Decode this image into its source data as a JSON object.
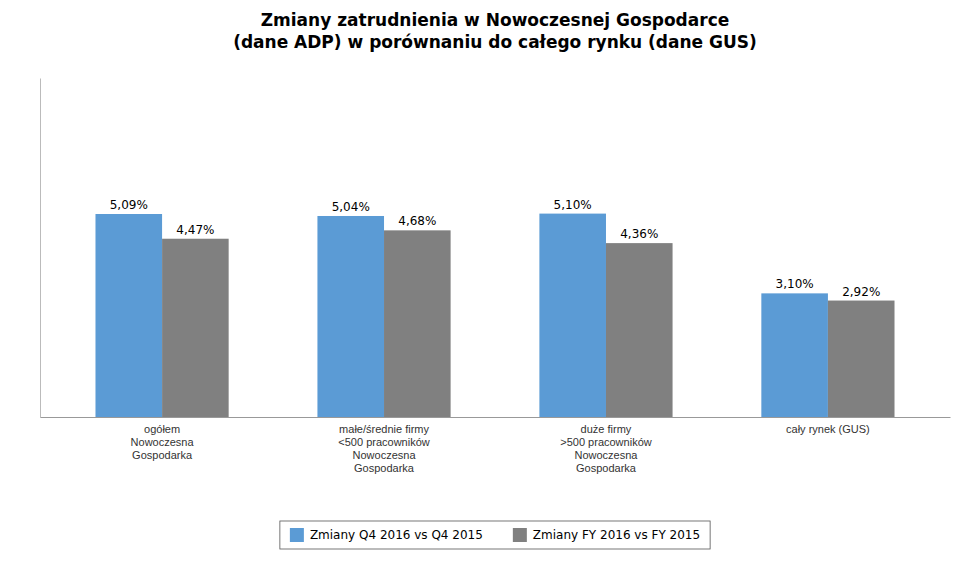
{
  "chart_data": {
    "type": "bar",
    "title": "Zmiany zatrudnienia w Nowoczesnej Gospodarce\n(dane ADP) w porównaniu do całego rynku (dane GUS)",
    "categories": [
      "ogółem\nNowoczesna\nGospodarka",
      "małe/średnie firmy\n<500 pracowników\nNowoczesna\nGospodarka",
      "duże firmy\n>500 pracowników\nNowoczesna\nGospodarka",
      "cały rynek (GUS)"
    ],
    "series": [
      {
        "name": "Zmiany Q4 2016 vs Q4 2015",
        "color": "#5B9BD5",
        "values": [
          5.09,
          5.04,
          5.1,
          3.1
        ],
        "value_labels": [
          "5,09%",
          "5,04%",
          "5,10%",
          "3,10%"
        ]
      },
      {
        "name": "Zmiany FY 2016 vs FY 2015",
        "color": "#808080",
        "values": [
          4.47,
          4.68,
          4.36,
          2.92
        ],
        "value_labels": [
          "4,47%",
          "4,68%",
          "4,36%",
          "2,92%"
        ]
      }
    ],
    "ylim": [
      0,
      8.5
    ],
    "data_labels": true,
    "tick_labels": "x",
    "grid": false,
    "legend": "bottom"
  }
}
